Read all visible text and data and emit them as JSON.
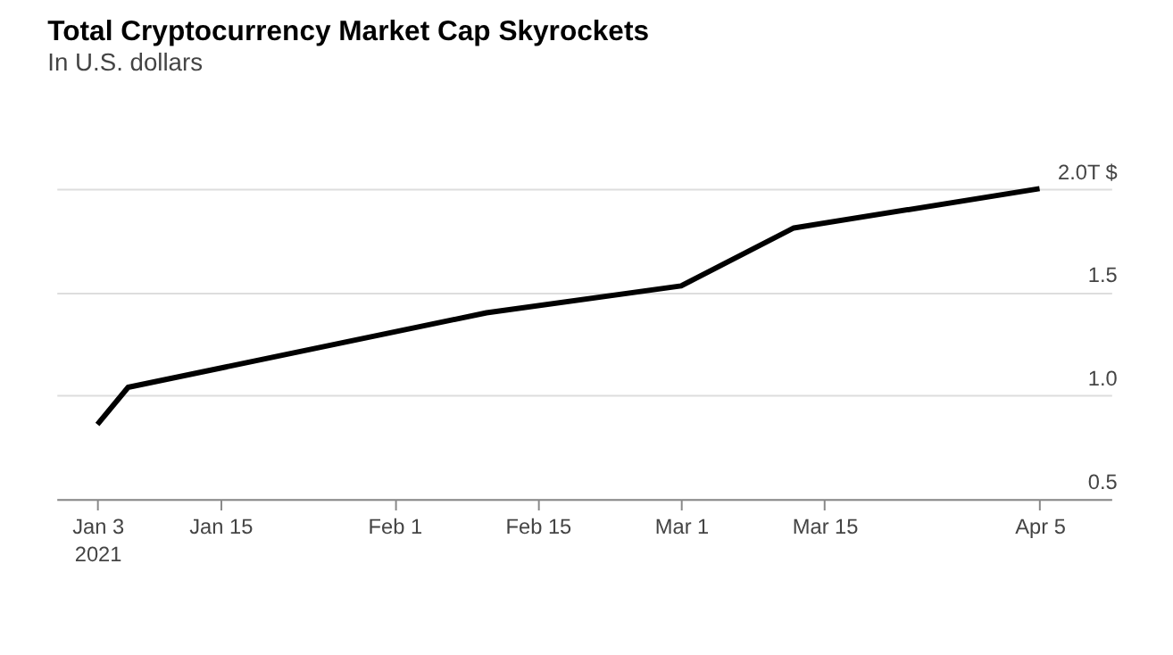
{
  "chart_data": {
    "type": "line",
    "title": "Total Cryptocurrency Market Cap Skyrockets",
    "subtitle": "In U.S. dollars",
    "x": [
      "2021-01-03",
      "2021-01-06",
      "2021-02-10",
      "2021-03-01",
      "2021-03-12",
      "2021-04-05"
    ],
    "series": [
      {
        "color": "#000000",
        "values": [
          0.86,
          1.04,
          1.4,
          1.53,
          1.81,
          2.0
        ]
      }
    ],
    "xlim": [
      "2020-12-30",
      "2021-04-12"
    ],
    "xticks": [
      {
        "value": "2021-01-03",
        "label": "Jan 3\n2021"
      },
      {
        "value": "2021-01-15",
        "label": "Jan 15"
      },
      {
        "value": "2021-02-01",
        "label": "Feb 1"
      },
      {
        "value": "2021-02-15",
        "label": "Feb 15"
      },
      {
        "value": "2021-03-01",
        "label": "Mar 1"
      },
      {
        "value": "2021-03-15",
        "label": "Mar 15"
      },
      {
        "value": "2021-04-05",
        "label": "Apr 5"
      }
    ],
    "ylim": [
      0.5,
      2.0
    ],
    "yticks": [
      0.5,
      {
        "value": 1.0,
        "label": "1.0"
      },
      1.5,
      {
        "value": 2.0,
        "label": "2.0T $"
      }
    ],
    "grid": "y",
    "marker": "none",
    "line_style": "solid"
  }
}
